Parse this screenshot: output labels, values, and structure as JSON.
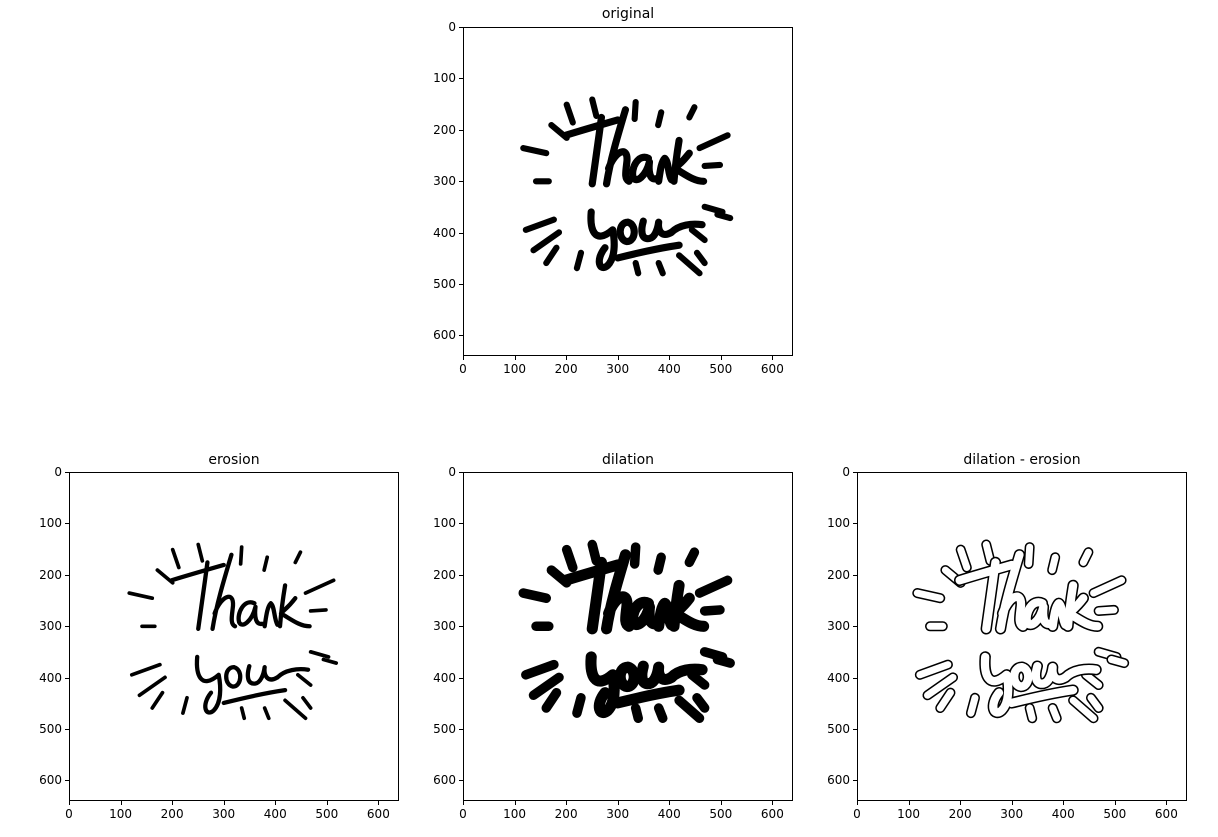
{
  "figure": {
    "panels": [
      {
        "id": "original",
        "title": "original",
        "style": "solid",
        "weight": 1.0
      },
      {
        "id": "erosion",
        "title": "erosion",
        "style": "solid",
        "weight": 0.6
      },
      {
        "id": "dilation",
        "title": "dilation",
        "style": "solid",
        "weight": 1.55
      },
      {
        "id": "gradient",
        "title": "dilation - erosion",
        "style": "outline",
        "weight": 1.3
      }
    ],
    "xticks": [
      "0",
      "100",
      "200",
      "300",
      "400",
      "500",
      "600"
    ],
    "yticks": [
      "0",
      "100",
      "200",
      "300",
      "400",
      "500",
      "600"
    ]
  },
  "image_content": {
    "text_line_1": "thank",
    "text_line_2": "you",
    "ink_color": "#000000",
    "paper_color": "#ffffff"
  }
}
